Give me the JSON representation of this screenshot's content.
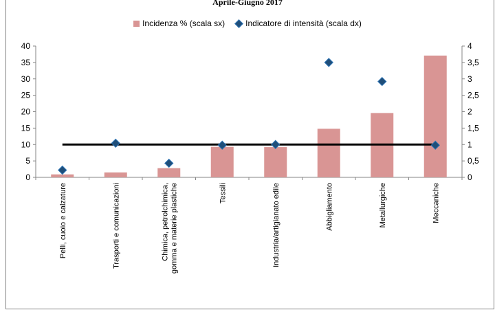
{
  "chart_data": {
    "type": "bar",
    "title": "Aprile-Giugno 2017",
    "categories": [
      "Pelli, cuoio e calzature",
      "Trasporti e comunicazioni",
      "Chimica, petrolchimica,\ngomma e materie plastiche",
      "Tessili",
      "Industria/artigianato edile",
      "Abbigliamento",
      "Metallurgiche",
      "Meccaniche"
    ],
    "series": [
      {
        "name": "Incidenza % (scala sx)",
        "type": "bar",
        "axis": "left",
        "color": "#d99594",
        "values": [
          0.9,
          1.5,
          2.8,
          9.3,
          9.2,
          14.8,
          19.6,
          37.1
        ]
      },
      {
        "name": "Indicatore di intensità (scala dx)",
        "type": "scatter",
        "axis": "right",
        "color": "#1f4e79",
        "values": [
          0.22,
          1.04,
          0.43,
          0.98,
          1.0,
          3.5,
          2.92,
          0.98
        ]
      }
    ],
    "reference_line": {
      "value": 10,
      "axis": "left",
      "color": "#000000"
    },
    "ylim_left": [
      0,
      40
    ],
    "yticks_left": [
      "0",
      "5",
      "10",
      "15",
      "20",
      "25",
      "30",
      "35",
      "40"
    ],
    "ylim_right": [
      0,
      4
    ],
    "yticks_right": [
      "0",
      "0,5",
      "1",
      "1,5",
      "2",
      "2,5",
      "3",
      "3,5",
      "4"
    ],
    "grid": false,
    "legend_position": "top"
  }
}
